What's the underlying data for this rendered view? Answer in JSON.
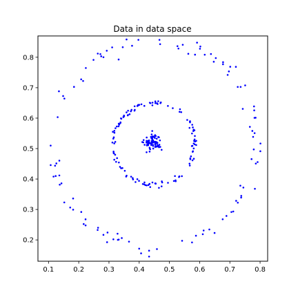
{
  "chart_data": {
    "type": "scatter",
    "title": "Data in data space",
    "xlabel": "",
    "ylabel": "",
    "xlim": [
      0.065,
      0.825
    ],
    "ylim": [
      0.13,
      0.87
    ],
    "xticks": [
      "0.1",
      "0.2",
      "0.3",
      "0.4",
      "0.5",
      "0.6",
      "0.7",
      "0.8"
    ],
    "yticks": [
      "0.2",
      "0.3",
      "0.4",
      "0.5",
      "0.6",
      "0.7",
      "0.8"
    ],
    "grid": false,
    "marker_color": "#0000ff",
    "clusters": [
      {
        "shape": "ring",
        "center": [
          0.45,
          0.515
        ],
        "radius": 0.34,
        "points": 110
      },
      {
        "shape": "ring",
        "center": [
          0.45,
          0.515
        ],
        "radius": 0.135,
        "points": 130
      },
      {
        "shape": "blob",
        "center": [
          0.445,
          0.52
        ],
        "radius": 0.02,
        "points": 80
      }
    ]
  }
}
